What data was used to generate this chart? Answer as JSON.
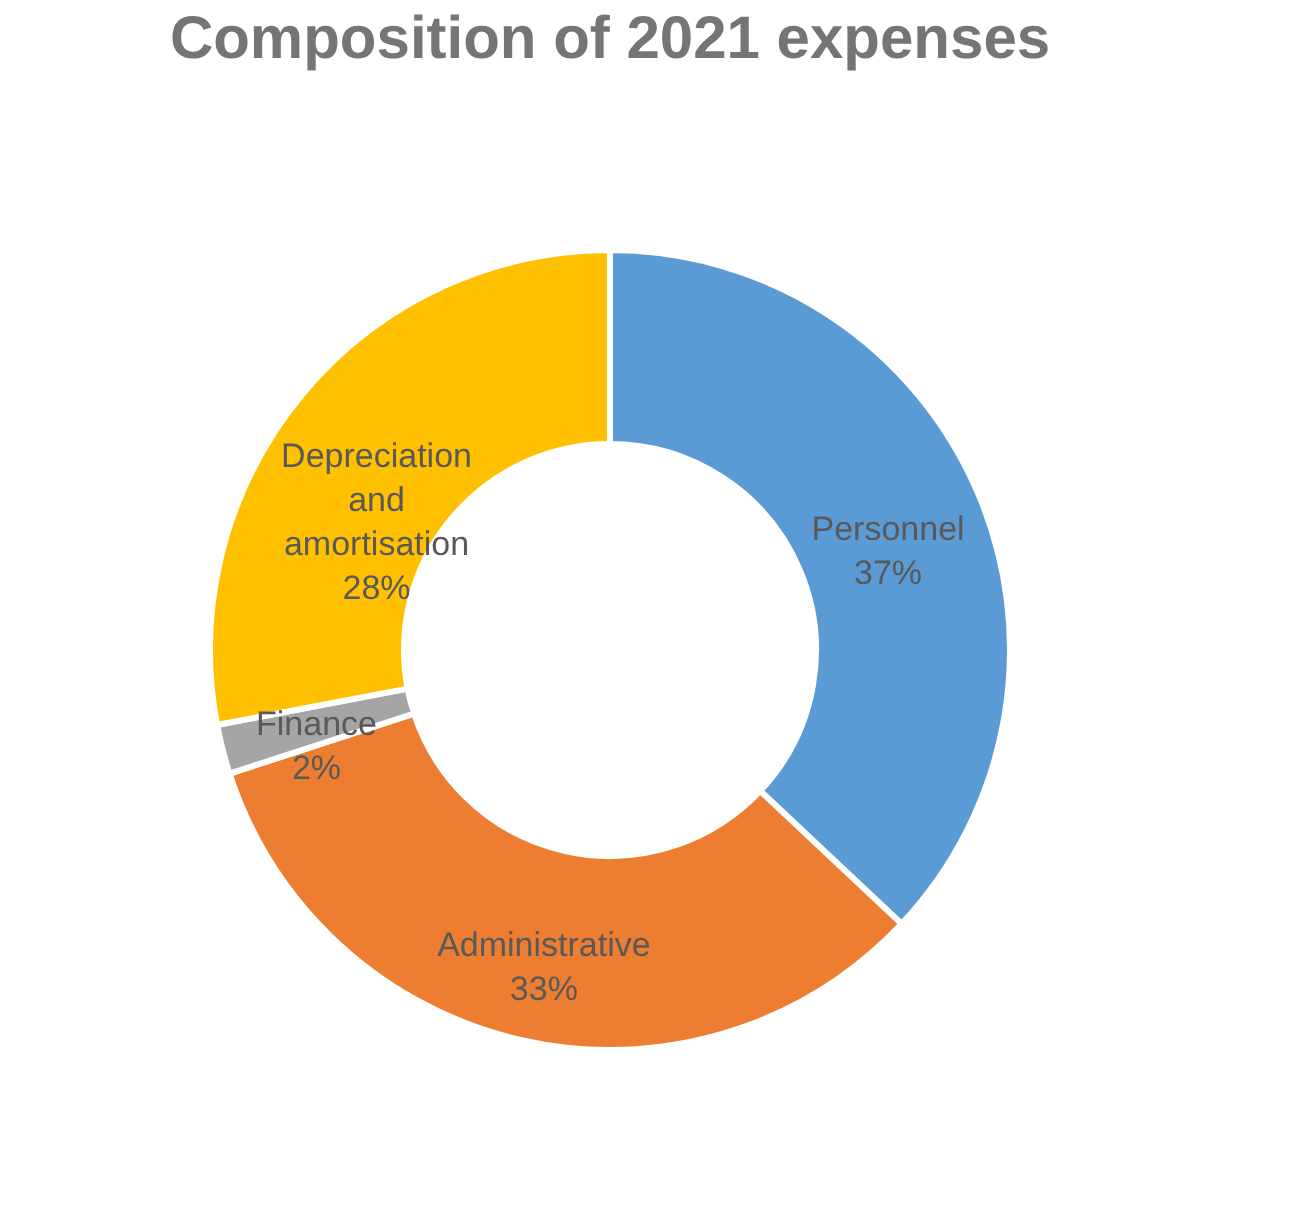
{
  "chart_data": {
    "type": "donut",
    "title": "Composition of 2021 expenses",
    "categories": [
      "Personnel",
      "Administrative",
      "Finance",
      "Depreciation and amortisation"
    ],
    "values": [
      37,
      33,
      2,
      28
    ],
    "value_labels": [
      "37%",
      "33%",
      "2%",
      "28%"
    ],
    "colors": [
      "#5b9bd5",
      "#ed7d31",
      "#a5a5a5",
      "#ffc000"
    ],
    "legend": false
  }
}
